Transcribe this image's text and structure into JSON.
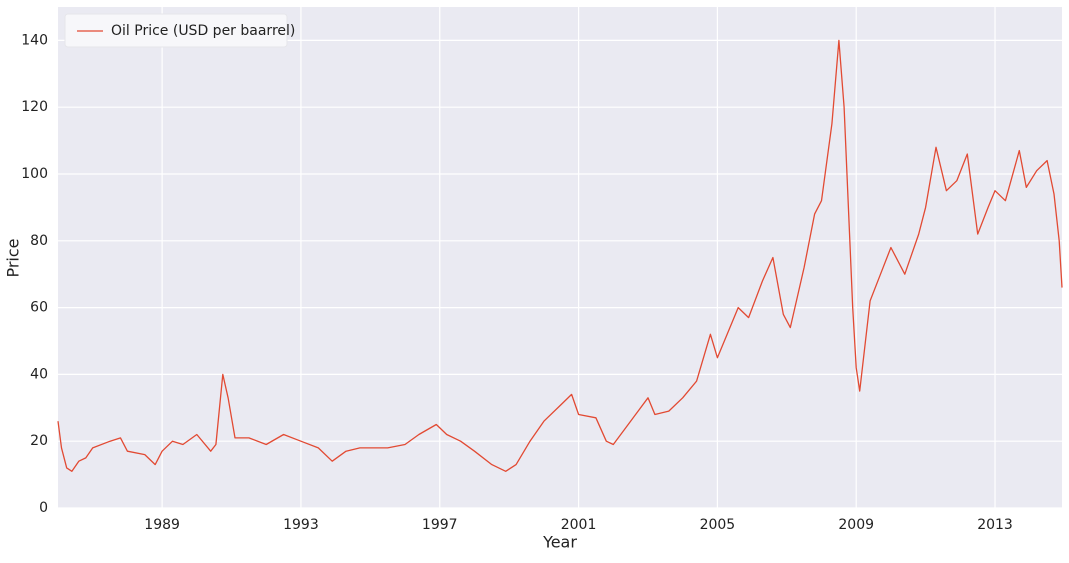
{
  "chart_data": {
    "type": "line",
    "xlabel": "Year",
    "ylabel": "Price",
    "grid": true,
    "legend": "upper left",
    "x": [
      1986.0,
      1986.1,
      1986.25,
      1986.4,
      1986.6,
      1986.8,
      1987.0,
      1987.5,
      1987.8,
      1988.0,
      1988.5,
      1988.8,
      1989.0,
      1989.3,
      1989.6,
      1990.0,
      1990.4,
      1990.55,
      1990.75,
      1990.9,
      1991.1,
      1991.5,
      1992.0,
      1992.5,
      1993.0,
      1993.5,
      1993.9,
      1994.3,
      1994.7,
      1995.0,
      1995.5,
      1996.0,
      1996.4,
      1996.9,
      1997.2,
      1997.6,
      1998.0,
      1998.5,
      1998.9,
      1999.2,
      1999.6,
      2000.0,
      2000.5,
      2000.8,
      2001.0,
      2001.5,
      2001.8,
      2002.0,
      2002.5,
      2003.0,
      2003.2,
      2003.6,
      2004.0,
      2004.4,
      2004.8,
      2005.0,
      2005.6,
      2005.9,
      2006.3,
      2006.6,
      2006.9,
      2007.1,
      2007.5,
      2007.8,
      2008.0,
      2008.3,
      2008.5,
      2008.65,
      2008.9,
      2009.0,
      2009.1,
      2009.4,
      2009.7,
      2010.0,
      2010.4,
      2010.8,
      2011.0,
      2011.3,
      2011.6,
      2011.9,
      2012.2,
      2012.5,
      2012.8,
      2013.0,
      2013.3,
      2013.7,
      2013.9,
      2014.2,
      2014.5,
      2014.7,
      2014.85,
      2014.93
    ],
    "series": [
      {
        "name": "Oil Price (USD per baarrel)",
        "color": "#e24a33",
        "values": [
          26,
          18,
          12,
          11,
          14,
          15,
          18,
          20,
          21,
          17,
          16,
          13,
          17,
          20,
          19,
          22,
          17,
          19,
          40,
          33,
          21,
          21,
          19,
          22,
          20,
          18,
          14,
          17,
          18,
          18,
          18,
          19,
          22,
          25,
          22,
          20,
          17,
          13,
          11,
          13,
          20,
          26,
          31,
          34,
          28,
          27,
          20,
          19,
          26,
          33,
          28,
          29,
          33,
          38,
          52,
          45,
          60,
          57,
          68,
          75,
          58,
          54,
          72,
          88,
          92,
          115,
          140,
          120,
          60,
          42,
          35,
          62,
          70,
          78,
          70,
          82,
          90,
          108,
          95,
          98,
          106,
          82,
          90,
          95,
          92,
          107,
          96,
          101,
          104,
          94,
          80,
          66
        ]
      }
    ],
    "xlim": [
      1986.0,
      2014.93
    ],
    "xticks": [
      1989,
      1993,
      1997,
      2001,
      2005,
      2009,
      2013
    ],
    "ylim": [
      0,
      150
    ],
    "yticks": [
      0,
      20,
      40,
      60,
      80,
      100,
      120,
      140
    ]
  }
}
